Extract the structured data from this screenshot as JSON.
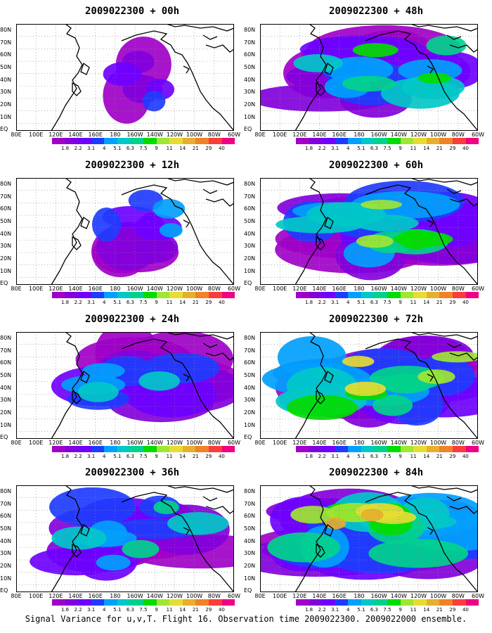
{
  "panels": [
    {
      "date": "2009022300",
      "sep": "+",
      "lead": "00h",
      "intensity": 0.08,
      "spread": 0.25,
      "seed": 1
    },
    {
      "date": "2009022300",
      "sep": "+",
      "lead": "48h",
      "intensity": 0.58,
      "spread": 0.85,
      "seed": 7
    },
    {
      "date": "2009022300",
      "sep": "+",
      "lead": "12h",
      "intensity": 0.18,
      "spread": 0.45,
      "seed": 3
    },
    {
      "date": "2009022300",
      "sep": "+",
      "lead": "60h",
      "intensity": 0.7,
      "spread": 0.9,
      "seed": 9
    },
    {
      "date": "2009022300",
      "sep": "+",
      "lead": "24h",
      "intensity": 0.32,
      "spread": 0.7,
      "seed": 5
    },
    {
      "date": "2009022300",
      "sep": "+",
      "lead": "72h",
      "intensity": 0.8,
      "spread": 0.95,
      "seed": 11
    },
    {
      "date": "2009022300",
      "sep": "+",
      "lead": "36h",
      "intensity": 0.45,
      "spread": 0.8,
      "seed": 6
    },
    {
      "date": "2009022300",
      "sep": "+",
      "lead": "84h",
      "intensity": 0.86,
      "spread": 1.0,
      "seed": 13
    }
  ],
  "lat_labels": [
    "80N",
    "70N",
    "60N",
    "50N",
    "40N",
    "30N",
    "20N",
    "10N",
    "EQ"
  ],
  "lon_labels": [
    "80E",
    "100E",
    "120E",
    "140E",
    "160E",
    "180",
    "160W",
    "140W",
    "120W",
    "100W",
    "80W",
    "60W"
  ],
  "colorbar": {
    "levels": [
      "1.8",
      "2.2",
      "3.1",
      "4",
      "5.1",
      "6.3",
      "7.5",
      "9",
      "11",
      "14",
      "21",
      "29",
      "40"
    ],
    "levels_36h": [
      "1.6",
      "2.2",
      "3.1",
      "4",
      "5.1",
      "6.3",
      "7.5",
      "9",
      "11",
      "14",
      "21",
      "29",
      "40"
    ],
    "colors": [
      "#a000c8",
      "#8200dc",
      "#6e00ff",
      "#1e3cff",
      "#00a0ff",
      "#00c8c8",
      "#00d28c",
      "#00dc00",
      "#a0e632",
      "#e6dc32",
      "#e6af2d",
      "#f08228",
      "#fa3c3c",
      "#f00082"
    ]
  },
  "caption": "Signal Variance for u,v,T. Flight 16. Observation time 2009022300. 2009022000 ensemble."
}
